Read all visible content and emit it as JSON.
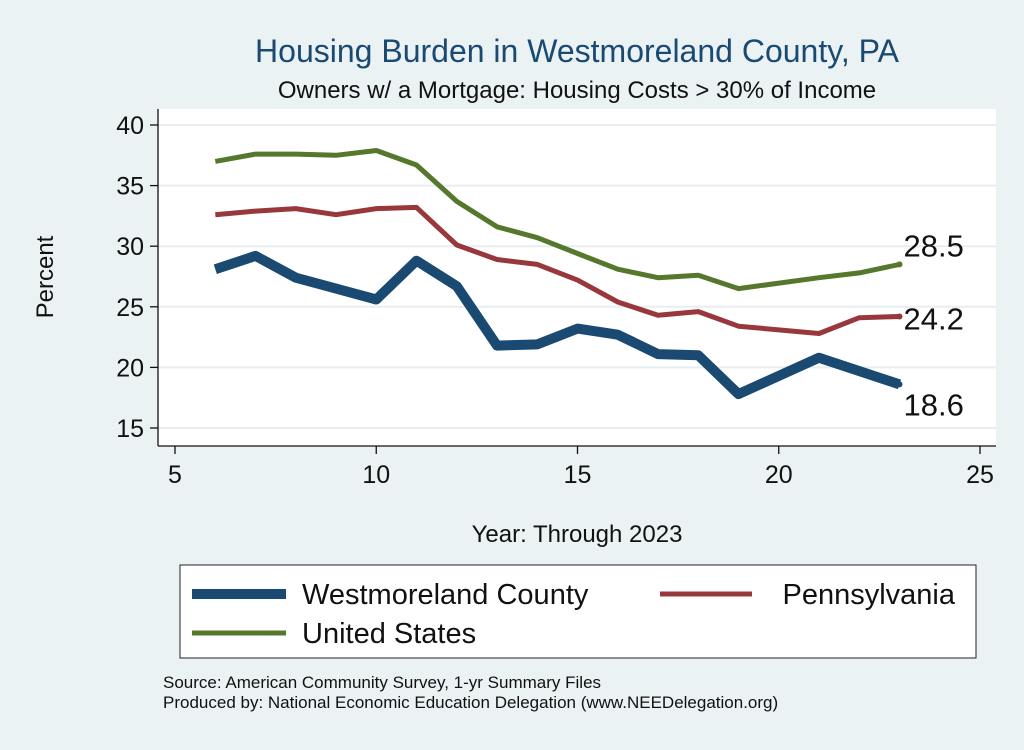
{
  "chart_data": {
    "type": "line",
    "title": "Housing Burden in Westmoreland County, PA",
    "subtitle": "Owners w/ a Mortgage: Housing Costs > 30% of Income",
    "xlabel": "Year: Through 2023",
    "ylabel": "Percent",
    "xlim": [
      5,
      25
    ],
    "ylim": [
      14.5,
      41
    ],
    "xticks": [
      5,
      10,
      15,
      20,
      25
    ],
    "yticks": [
      15,
      20,
      25,
      30,
      35,
      40
    ],
    "grid": true,
    "legend_position": "bottom",
    "series": [
      {
        "name": "Westmoreland County",
        "color": "#1a4a72",
        "x": [
          6,
          7,
          8,
          9,
          10,
          11,
          12,
          13,
          14,
          15,
          16,
          17,
          18,
          19,
          21,
          23
        ],
        "y": [
          28.1,
          29.2,
          27.4,
          26.5,
          25.6,
          28.8,
          26.7,
          21.8,
          21.9,
          23.2,
          22.7,
          21.1,
          21.0,
          17.8,
          20.8,
          18.6
        ],
        "end_label": "18.6"
      },
      {
        "name": "Pennsylvania",
        "color": "#98383c",
        "x": [
          6,
          7,
          8,
          9,
          10,
          11,
          12,
          13,
          14,
          15,
          16,
          17,
          18,
          19,
          21,
          22,
          23
        ],
        "y": [
          32.6,
          32.9,
          33.1,
          32.6,
          33.1,
          33.2,
          30.1,
          28.9,
          28.5,
          27.2,
          25.4,
          24.3,
          24.6,
          23.4,
          22.8,
          24.1,
          24.2
        ],
        "end_label": "24.2"
      },
      {
        "name": "United States",
        "color": "#55782d",
        "x": [
          6,
          7,
          8,
          9,
          10,
          11,
          12,
          13,
          14,
          15,
          16,
          17,
          18,
          19,
          21,
          22,
          23
        ],
        "y": [
          37.0,
          37.6,
          37.6,
          37.5,
          37.9,
          36.7,
          33.7,
          31.6,
          30.7,
          29.4,
          28.1,
          27.4,
          27.6,
          26.5,
          27.4,
          27.8,
          28.5
        ],
        "end_label": "28.5"
      }
    ]
  },
  "footer": {
    "source": "Source: American Community Survey, 1-yr Summary Files",
    "produced_by": "Produced by: National Economic Education Delegation (www.NEEDelegation.org)"
  }
}
